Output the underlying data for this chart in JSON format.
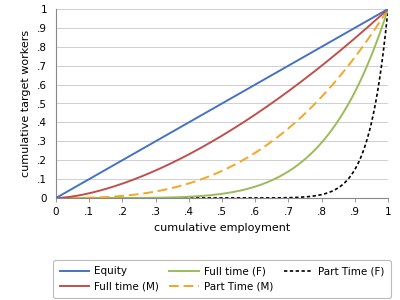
{
  "title": "",
  "xlabel": "cumulative employment",
  "ylabel": "cumulative target workers",
  "xlim": [
    0,
    1
  ],
  "ylim": [
    0,
    1
  ],
  "xticks": [
    0,
    0.1,
    0.2,
    0.3,
    0.4,
    0.5,
    0.6,
    0.7,
    0.8,
    0.9,
    1.0
  ],
  "yticks": [
    0,
    0.1,
    0.2,
    0.3,
    0.4,
    0.5,
    0.6,
    0.7,
    0.8,
    0.9,
    1.0
  ],
  "xtick_labels": [
    "0",
    ".1",
    ".2",
    ".3",
    ".4",
    ".5",
    ".6",
    ".7",
    ".8",
    ".9",
    "1"
  ],
  "ytick_labels": [
    "0",
    ".1",
    ".2",
    ".3",
    ".4",
    ".5",
    ".6",
    ".7",
    ".8",
    ".9",
    "1"
  ],
  "equity_color": "#4472C4",
  "full_time_m_color": "#C0504D",
  "full_time_f_color": "#9BBB59",
  "part_time_m_color": "#F5A623",
  "part_time_f_color": "#000000",
  "legend_labels": [
    "Equity",
    "Full time (M)",
    "Full time (F)",
    "Part Time (M)",
    "Part Time (F)"
  ],
  "background_color": "#ffffff",
  "grid_color": "#c8c8c8",
  "equity_power": 1.0,
  "full_time_m_power": 1.6,
  "full_time_f_power": 5.5,
  "part_time_m_power": 2.8,
  "part_time_f_power": 18.0
}
